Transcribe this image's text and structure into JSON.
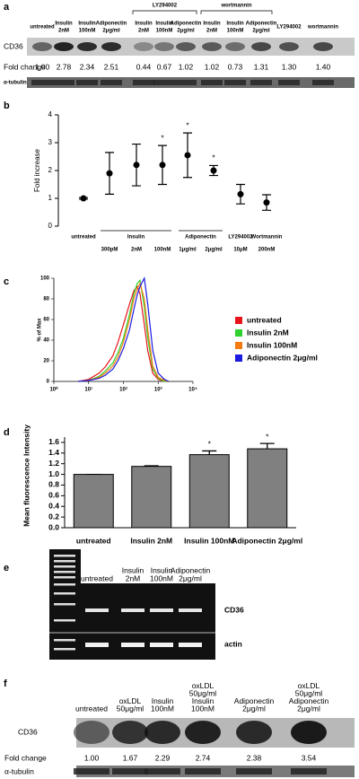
{
  "panel_a": {
    "letter": "a",
    "groups": [
      "LY294002",
      "wortmannin"
    ],
    "lanes": [
      [
        "untreated"
      ],
      [
        "Insulin",
        "2nM"
      ],
      [
        "Insulin",
        "100nM"
      ],
      [
        "Adiponectin",
        "2μg/ml"
      ],
      [
        "Insulin",
        "2nM"
      ],
      [
        "Insulin",
        "100nM"
      ],
      [
        "Adiponectin",
        "2μg/ml"
      ],
      [
        "Insulin",
        "2nM"
      ],
      [
        "Insulin",
        "100nM"
      ],
      [
        "Adiponectin",
        "2μg/ml"
      ],
      [
        "LY294002"
      ],
      [
        "wortmannin"
      ]
    ],
    "rows": [
      "CD36",
      "Fold change",
      "α-tubulin"
    ],
    "fold_change": [
      "1.00",
      "2.78",
      "2.34",
      "2.51",
      "0.44",
      "0.67",
      "1.02",
      "1.02",
      "0.73",
      "1.31",
      "1.30",
      "1.40"
    ]
  },
  "chart_data": [
    {
      "type": "scatter",
      "letter": "b",
      "ylabel": "Fold increase",
      "group": [
        "untreated",
        "Insulin",
        "Insulin",
        "Insulin",
        "Adiponectin",
        "Adiponectin",
        "LY294002",
        "Wortmannin"
      ],
      "categories": [
        null,
        "300pM",
        "2nM",
        "100nM",
        "1μg/ml",
        "2μg/ml",
        "10μM",
        "200nM"
      ],
      "values": [
        1.0,
        1.9,
        2.2,
        2.2,
        2.55,
        2.0,
        1.15,
        0.85
      ],
      "errors": [
        0.03,
        0.75,
        0.75,
        0.7,
        0.8,
        0.18,
        0.35,
        0.28
      ],
      "significant": [
        false,
        false,
        false,
        true,
        true,
        true,
        false,
        false
      ],
      "marker": "*",
      "color": "#000000",
      "ylim": [
        0,
        4
      ],
      "yticks": [
        0,
        1,
        2,
        3,
        4
      ]
    },
    {
      "type": "line",
      "letter": "c",
      "ylabel": "% of Max",
      "xscale": "log",
      "xlim": [
        1,
        10000
      ],
      "xticks": [
        {
          "value": 1,
          "label": "10⁰"
        },
        {
          "value": 10,
          "label": "10¹"
        },
        {
          "value": 100,
          "label": "10²"
        },
        {
          "value": 1000,
          "label": "10³"
        },
        {
          "value": 10000,
          "label": "10⁴"
        }
      ],
      "ylim": [
        0,
        100
      ],
      "yticks": [
        0,
        20,
        40,
        60,
        80,
        100
      ],
      "x": [
        5,
        10,
        20,
        30,
        50,
        70,
        100,
        150,
        200,
        250,
        300,
        400,
        500,
        700,
        1000,
        1500,
        2000
      ],
      "series": [
        {
          "name": "untreated",
          "color": "#e8141b",
          "values": [
            0,
            2,
            8,
            14,
            25,
            38,
            55,
            75,
            88,
            92,
            85,
            55,
            30,
            8,
            2,
            0,
            0
          ]
        },
        {
          "name": "Insulin 2nM",
          "color": "#2fd12f",
          "values": [
            0,
            1,
            5,
            10,
            18,
            28,
            42,
            65,
            85,
            95,
            98,
            72,
            42,
            12,
            3,
            0,
            0
          ]
        },
        {
          "name": "Insulin 100nM",
          "color": "#f57a10",
          "values": [
            0,
            1,
            4,
            8,
            15,
            24,
            38,
            60,
            80,
            90,
            95,
            80,
            50,
            15,
            4,
            1,
            0
          ]
        },
        {
          "name": "Adiponectin 2μg/ml",
          "color": "#1a1ae0",
          "values": [
            0,
            1,
            3,
            6,
            12,
            20,
            32,
            50,
            70,
            84,
            92,
            100,
            75,
            30,
            8,
            2,
            0
          ]
        }
      ]
    },
    {
      "type": "bar",
      "letter": "d",
      "ylabel": "Mean fluorescence Intensity",
      "categories": [
        "untreated",
        "Insulin 2nM",
        "Insulin 100nM",
        "Adiponectin 2μg/ml"
      ],
      "values": [
        1.0,
        1.15,
        1.37,
        1.48
      ],
      "errors": [
        0,
        0.01,
        0.07,
        0.1
      ],
      "significant": [
        false,
        false,
        true,
        true
      ],
      "marker": "*",
      "color": "#808080",
      "ylim": [
        0,
        1.7
      ],
      "yticks": [
        {
          "value": 0,
          "label": "0.0"
        },
        0.2,
        0.4,
        0.6,
        0.8,
        {
          "value": 1,
          "label": "1.0"
        },
        1.2,
        1.4,
        1.6
      ]
    }
  ],
  "panel_e": {
    "letter": "e",
    "lanes": [
      [
        "untreated"
      ],
      [
        "Insulin",
        "2nM"
      ],
      [
        "Insulin",
        "100nM"
      ],
      [
        "Adiponectin",
        "2μg/ml"
      ]
    ],
    "rows": [
      "CD36",
      "actin"
    ]
  },
  "panel_f": {
    "letter": "f",
    "lanes": [
      [
        "untreated"
      ],
      [
        "oxLDL",
        "50μg/ml"
      ],
      [
        "Insulin",
        "100nM"
      ],
      [
        "oxLDL",
        "50μg/ml",
        "Insulin",
        "100nM"
      ],
      [
        "Adiponectin",
        "2μg/ml"
      ],
      [
        "oxLDL",
        "50μg/ml",
        "Adiponectin",
        "2μg/ml"
      ]
    ],
    "rows": [
      "CD36",
      "Fold change",
      "α-tubulin"
    ],
    "fold_change": [
      "1.00",
      "1.67",
      "2.29",
      "2.74",
      "2.38",
      "3.54"
    ]
  }
}
